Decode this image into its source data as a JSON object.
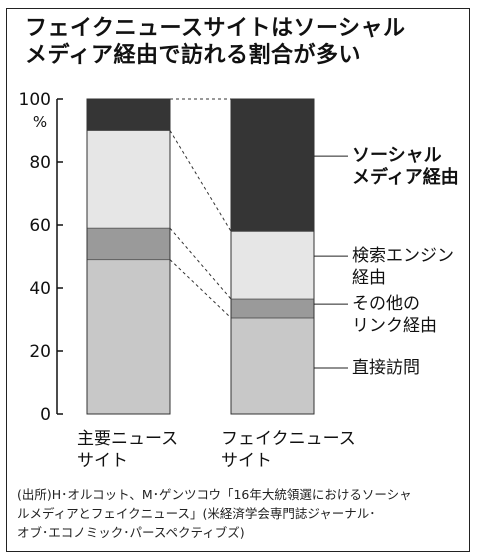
{
  "title_lines": [
    "フェイクニュースサイトはソーシャル",
    "メディア経由で訪れる割合が多い"
  ],
  "chart_data": {
    "type": "bar",
    "stacked": true,
    "normalized_100": true,
    "categories": [
      [
        "主要ニュース",
        "サイト"
      ],
      [
        "フェイクニュース",
        "サイト"
      ]
    ],
    "series": [
      {
        "name": [
          "直接訪問"
        ],
        "values": [
          49,
          30.5
        ],
        "color": "#c8c8c8"
      },
      {
        "name": [
          "その他の",
          "リンク経由"
        ],
        "values": [
          10,
          6
        ],
        "color": "#9a9a9a"
      },
      {
        "name": [
          "検索エンジン",
          "経由"
        ],
        "values": [
          31,
          21.5
        ],
        "color": "#e6e6e6"
      },
      {
        "name": [
          "ソーシャル",
          "メディア経由"
        ],
        "values": [
          10,
          42
        ],
        "color": "#353535"
      }
    ],
    "y_ticks": [
      "0",
      "20",
      "40",
      "60",
      "80",
      "100"
    ],
    "y_unit": "%",
    "ylim": [
      0,
      100
    ],
    "grid": false,
    "connector_lines": "dashed",
    "legend": "right, labels beside fake-news bar"
  },
  "source_lines": [
    "(出所)H･オルコット、M･ゲンツコウ「16年大統領選におけるソーシャ",
    "ルメディアとフェイクニュース」(米経済学会専門誌ジャーナル･",
    "オブ･エコノミック･パースペクティブズ)"
  ]
}
